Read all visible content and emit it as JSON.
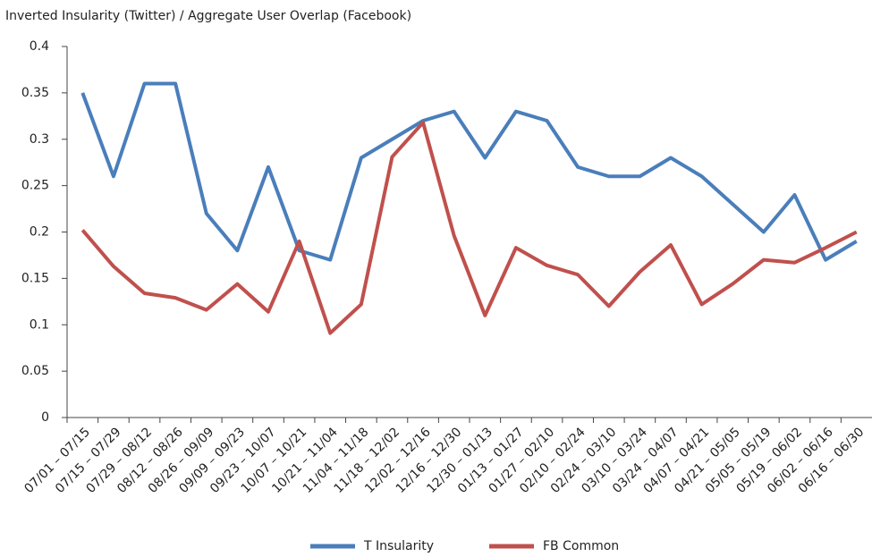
{
  "chart_data": {
    "type": "line",
    "title": "Inverted Insularity (Twitter) / Aggregate User Overlap (Facebook)",
    "categories": [
      "07/01 – 07/15",
      "07/15 – 07/29",
      "07/29 – 08/12",
      "08/12 – 08/26",
      "08/26 – 09/09",
      "09/09 – 09/23",
      "09/23 – 10/07",
      "10/07 – 10/21",
      "10/21 – 11/04",
      "11/04 – 11/18",
      "11/18 – 12/02",
      "12/02 – 12/16",
      "12/16 – 12/30",
      "12/30 – 01/13",
      "01/13 – 01/27",
      "01/27 – 02/10",
      "02/10 – 02/24",
      "02/24 – 03/10",
      "03/10 – 03/24",
      "03/24 – 04/07",
      "04/07 – 04/21",
      "04/21 – 05/05",
      "05/05 – 05/19",
      "05/19 – 06/02",
      "06/02 – 06/16",
      "06/16 – 06/30"
    ],
    "series": [
      {
        "name": "T Insularity",
        "color": "#4a7ebb",
        "values": [
          0.35,
          0.26,
          0.36,
          0.36,
          0.22,
          0.18,
          0.27,
          0.18,
          0.17,
          0.28,
          0.3,
          0.32,
          0.33,
          0.28,
          0.33,
          0.32,
          0.27,
          0.26,
          0.26,
          0.28,
          0.26,
          0.23,
          0.2,
          0.24,
          0.17,
          0.19
        ]
      },
      {
        "name": "FB Common",
        "color": "#c0504d",
        "values": [
          0.202,
          0.163,
          0.134,
          0.129,
          0.116,
          0.144,
          0.114,
          0.19,
          0.091,
          0.122,
          0.281,
          0.318,
          0.196,
          0.11,
          0.183,
          0.164,
          0.154,
          0.12,
          0.157,
          0.186,
          0.122,
          0.144,
          0.17,
          0.167,
          0.183,
          0.2
        ]
      }
    ],
    "ylim": [
      0,
      0.4
    ],
    "yticks": [
      0,
      0.05,
      0.1,
      0.15,
      0.2,
      0.25,
      0.3,
      0.35,
      0.4
    ],
    "legend": "bottom"
  }
}
